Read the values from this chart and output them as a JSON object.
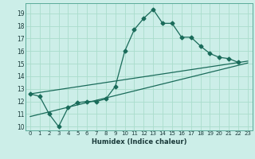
{
  "xlabel": "Humidex (Indice chaleur)",
  "background_color": "#cceee8",
  "grid_color": "#aaddcc",
  "line_color": "#1a6b5a",
  "xlim": [
    -0.5,
    23.5
  ],
  "ylim": [
    9.7,
    19.8
  ],
  "yticks": [
    10,
    11,
    12,
    13,
    14,
    15,
    16,
    17,
    18,
    19
  ],
  "xticks": [
    0,
    1,
    2,
    3,
    4,
    5,
    6,
    7,
    8,
    9,
    10,
    11,
    12,
    13,
    14,
    15,
    16,
    17,
    18,
    19,
    20,
    21,
    22,
    23
  ],
  "line1_x": [
    0,
    1,
    2,
    3,
    4,
    5,
    6,
    7,
    8,
    9,
    10,
    11,
    12,
    13,
    14,
    15,
    16,
    17,
    18,
    19,
    20,
    21,
    22
  ],
  "line1_y": [
    12.6,
    12.4,
    11.0,
    10.0,
    11.5,
    11.9,
    12.0,
    12.0,
    12.2,
    13.2,
    16.0,
    17.7,
    18.6,
    19.3,
    18.2,
    18.2,
    17.1,
    17.1,
    16.4,
    15.8,
    15.5,
    15.4,
    15.1
  ],
  "line2_x": [
    0,
    23
  ],
  "line2_y": [
    12.6,
    15.2
  ],
  "line3_x": [
    0,
    23
  ],
  "line3_y": [
    10.8,
    15.05
  ],
  "marker": "D",
  "markersize": 2.5,
  "linewidth": 0.9,
  "tick_fontsize": 5.0,
  "xlabel_fontsize": 6.0
}
